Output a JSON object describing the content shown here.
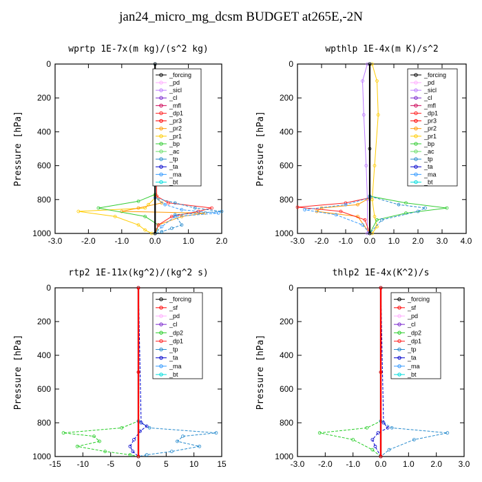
{
  "title": "jan24_micro_mg_dcsm  BUDGET at265E,-2N",
  "colors": {
    "forcing": "#000000",
    "sf": "#ff0000",
    "pd": "#ffaaff",
    "sicl": "#bb77ff",
    "cl": "#7722cc",
    "mfl": "#cc0055",
    "dp1": "#ff2222",
    "dp2": "#22cc22",
    "pr3": "#ff0000",
    "pr2": "#ff9900",
    "pr1": "#ffcc00",
    "bp": "#33cc33",
    "ac": "#66dd66",
    "tp": "#2288cc",
    "ta": "#0000cc",
    "ma": "#3399ff",
    "bt": "#00dddd"
  },
  "chart_data": [
    {
      "type": "line",
      "title": "wprtp   1E-7x(m kg)/(s^2 kg)",
      "ylabel": "Pressure [hPa]",
      "xlim": [
        -3.0,
        2.0
      ],
      "ylim": [
        1000,
        0
      ],
      "xticks": [
        "-3.0",
        "-2.0",
        "-1.0",
        "0.0",
        "1.0",
        "2.0"
      ],
      "yticks": [
        "0",
        "200",
        "400",
        "600",
        "800",
        "1000"
      ],
      "legend": [
        "_forcing",
        "_pd",
        "_sicl",
        "_cl",
        "_mfl",
        "_dp1",
        "_pr3",
        "_pr2",
        "_pr1",
        "_bp",
        "_ac",
        "_tp",
        "_ta",
        "_ma",
        "_bt"
      ],
      "series": [
        {
          "key": "pr1",
          "x": [
            0,
            0.05,
            -0.2,
            -0.3,
            -2.3,
            -1.2,
            -0.5,
            -0.3,
            -0.1
          ],
          "y": [
            0,
            780,
            830,
            850,
            870,
            900,
            950,
            980,
            1000
          ]
        },
        {
          "key": "pr2",
          "x": [
            0,
            0.0,
            0.2,
            -0.5,
            -1.0,
            1.5,
            0.8,
            0.1,
            0
          ],
          "y": [
            0,
            780,
            820,
            850,
            870,
            880,
            900,
            950,
            1000
          ]
        },
        {
          "key": "bp",
          "x": [
            0,
            0.0,
            -0.5,
            -1.7,
            -0.3,
            0.1,
            0.05,
            0.0
          ],
          "y": [
            0,
            770,
            810,
            850,
            900,
            950,
            980,
            1000
          ]
        },
        {
          "key": "dp1",
          "x": [
            0,
            0.05,
            0.4,
            1.7,
            1.3,
            0.5,
            0.1,
            0
          ],
          "y": [
            0,
            780,
            820,
            850,
            870,
            900,
            950,
            1000
          ]
        },
        {
          "key": "tp",
          "x": [
            0,
            0.0,
            0.6,
            1.2,
            2.0,
            0.6,
            0.8,
            0.5,
            0.2,
            0
          ],
          "y": [
            0,
            790,
            820,
            850,
            870,
            890,
            950,
            970,
            990,
            1000
          ]
        },
        {
          "key": "ma",
          "x": [
            0,
            0.0,
            0.3,
            0.8,
            1.9,
            0.6,
            0.2,
            0
          ],
          "y": [
            0,
            790,
            830,
            860,
            880,
            900,
            960,
            1000
          ]
        },
        {
          "key": "forcing",
          "x": [
            0,
            0,
            0
          ],
          "y": [
            0,
            500,
            1000
          ]
        }
      ]
    },
    {
      "type": "line",
      "title": "wpthlp   1E-4x(m K)/s^2",
      "ylabel": "Pressure [hPa]",
      "xlim": [
        -3.0,
        4.0
      ],
      "ylim": [
        1000,
        0
      ],
      "xticks": [
        "-3.0",
        "-2.0",
        "-1.0",
        "0.0",
        "1.0",
        "2.0",
        "3.0",
        "4.0"
      ],
      "yticks": [
        "0",
        "200",
        "400",
        "600",
        "800",
        "1000"
      ],
      "legend": [
        "_forcing",
        "_pd",
        "_sicl",
        "_cl",
        "_mfl",
        "_dp1",
        "_pr3",
        "_pr2",
        "_pr1",
        "_bp",
        "_ac",
        "_tp",
        "_ta",
        "_ma",
        "_bt"
      ],
      "series": [
        {
          "key": "pr1",
          "x": [
            0.1,
            0.3,
            0.35,
            0.2,
            0.1,
            0.2,
            0.3,
            0.1
          ],
          "y": [
            0,
            100,
            300,
            600,
            800,
            900,
            960,
            1000
          ]
        },
        {
          "key": "sicl",
          "x": [
            -0.1,
            -0.3,
            -0.25,
            -0.15,
            -0.1,
            -0.1
          ],
          "y": [
            0,
            100,
            300,
            600,
            800,
            1000
          ]
        },
        {
          "key": "bp",
          "x": [
            0,
            0.0,
            1.5,
            3.2,
            1.5,
            0.3,
            0.0
          ],
          "y": [
            0,
            780,
            820,
            850,
            880,
            920,
            1000
          ]
        },
        {
          "key": "pr2",
          "x": [
            0,
            0.0,
            -0.5,
            -2.0,
            -2.2,
            -0.5,
            0.0
          ],
          "y": [
            0,
            790,
            830,
            850,
            870,
            900,
            1000
          ]
        },
        {
          "key": "dp1",
          "x": [
            0,
            0.0,
            -1.0,
            -3.0,
            -1.2,
            -0.2,
            0.0
          ],
          "y": [
            0,
            790,
            820,
            845,
            870,
            920,
            1000
          ]
        },
        {
          "key": "tp",
          "x": [
            0,
            0.0,
            1.2,
            2.3,
            2.0,
            0.5,
            0.0
          ],
          "y": [
            0,
            780,
            830,
            850,
            870,
            920,
            1000
          ]
        },
        {
          "key": "ma",
          "x": [
            0,
            0.0,
            -1.0,
            -2.7,
            -1.4,
            -0.3,
            0.0
          ],
          "y": [
            0,
            790,
            830,
            860,
            890,
            950,
            1000
          ]
        },
        {
          "key": "forcing",
          "x": [
            0,
            0,
            0
          ],
          "y": [
            0,
            500,
            1000
          ]
        }
      ]
    },
    {
      "type": "line",
      "title": "rtp2  1E-11x(kg^2)/(kg^2 s)",
      "ylabel": "Pressure [hPa]",
      "xlim": [
        -15,
        15
      ],
      "ylim": [
        1000,
        0
      ],
      "xticks": [
        "-15",
        "-10",
        "-5",
        "0",
        "5",
        "10",
        "15"
      ],
      "yticks": [
        "0",
        "200",
        "400",
        "600",
        "800",
        "1000"
      ],
      "legend": [
        "_forcing",
        "_sf",
        "_pd",
        "_cl",
        "_dp2",
        "_dp1",
        "_tp",
        "_ta",
        "_ma",
        "_bt"
      ],
      "series": [
        {
          "key": "dp2",
          "x": [
            0,
            0.0,
            -3.0,
            -13.5,
            -8.0,
            -7.0,
            -11.0,
            -6.0,
            -1.5,
            0
          ],
          "y": [
            0,
            790,
            830,
            860,
            880,
            910,
            940,
            970,
            990,
            1000
          ]
        },
        {
          "key": "tp",
          "x": [
            0,
            0.0,
            2.0,
            14.0,
            8.0,
            7.0,
            11.0,
            6.0,
            1.5,
            0
          ],
          "y": [
            0,
            790,
            830,
            860,
            880,
            910,
            940,
            970,
            990,
            1000
          ]
        },
        {
          "key": "ta",
          "x": [
            0,
            0.5,
            1.5,
            0.3,
            -0.8,
            -1.5,
            -1.0,
            0
          ],
          "y": [
            0,
            800,
            820,
            850,
            900,
            940,
            970,
            1000
          ]
        },
        {
          "key": "forcing",
          "x": [
            0,
            0,
            0
          ],
          "y": [
            0,
            500,
            1000
          ]
        },
        {
          "key": "sf",
          "x": [
            0,
            0,
            0
          ],
          "y": [
            0,
            500,
            1000
          ]
        }
      ]
    },
    {
      "type": "line",
      "title": "thlp2   1E-4x(K^2)/s",
      "ylabel": "Pressure [hPa]",
      "xlim": [
        -3.0,
        3.0
      ],
      "ylim": [
        1000,
        0
      ],
      "xticks": [
        "-3.0",
        "-2.0",
        "-1.0",
        "0.0",
        "1.0",
        "2.0",
        "3.0"
      ],
      "yticks": [
        "0",
        "200",
        "400",
        "600",
        "800",
        "1000"
      ],
      "legend": [
        "_forcing",
        "_sf",
        "_pd",
        "_cl",
        "_dp2",
        "_dp1",
        "_tp",
        "_ta",
        "_ma",
        "_bt"
      ],
      "series": [
        {
          "key": "dp2",
          "x": [
            0,
            0.0,
            -0.5,
            -2.2,
            -1.0,
            -0.3,
            0
          ],
          "y": [
            0,
            790,
            830,
            860,
            900,
            960,
            1000
          ]
        },
        {
          "key": "tp",
          "x": [
            0,
            0.0,
            0.4,
            2.4,
            1.2,
            0.3,
            0
          ],
          "y": [
            0,
            790,
            830,
            860,
            900,
            960,
            1000
          ]
        },
        {
          "key": "ta",
          "x": [
            0,
            0.1,
            0.25,
            -0.1,
            -0.3,
            -0.2,
            0
          ],
          "y": [
            0,
            800,
            830,
            860,
            900,
            940,
            1000
          ]
        },
        {
          "key": "forcing",
          "x": [
            0,
            0,
            0
          ],
          "y": [
            0,
            500,
            1000
          ]
        },
        {
          "key": "sf",
          "x": [
            0,
            0,
            0
          ],
          "y": [
            0,
            500,
            1000
          ]
        }
      ]
    }
  ]
}
